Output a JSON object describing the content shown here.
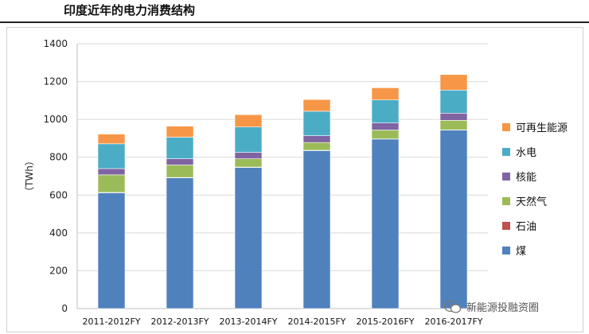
{
  "header": {
    "title": "印度近年的电力消费结构"
  },
  "watermark": {
    "text": "新能源投融资圈"
  },
  "colors": {
    "煤": "#4F81BD",
    "石油": "#C0504D",
    "天然气": "#9BBB59",
    "核能": "#8064A2",
    "水电": "#4BACC6",
    "可再生能源": "#F79646"
  },
  "chart_data": {
    "type": "bar",
    "stacked": true,
    "ylabel": "（TWh）",
    "ylim": [
      0,
      1400
    ],
    "yticks": [
      0,
      200,
      400,
      600,
      800,
      1000,
      1200,
      1400
    ],
    "grid": true,
    "legend_position": "right",
    "categories": [
      "2011-2012FY",
      "2012-2013FY",
      "2013-2014FY",
      "2014-2015FY",
      "2015-2016FY",
      "2016-2017FY"
    ],
    "series": [
      {
        "name": "煤",
        "values": [
          612,
          691,
          746,
          835,
          896,
          944
        ]
      },
      {
        "name": "石油",
        "values": [
          2,
          2,
          2,
          2,
          1,
          1
        ]
      },
      {
        "name": "天然气",
        "values": [
          93,
          66,
          44,
          41,
          47,
          50
        ]
      },
      {
        "name": "核能",
        "values": [
          33,
          33,
          34,
          36,
          37,
          38
        ]
      },
      {
        "name": "水电",
        "values": [
          131,
          114,
          134,
          129,
          122,
          122
        ]
      },
      {
        "name": "可再生能源",
        "values": [
          51,
          58,
          65,
          62,
          64,
          82
        ]
      }
    ],
    "legend_order": [
      "可再生能源",
      "水电",
      "核能",
      "天然气",
      "石油",
      "煤"
    ]
  }
}
